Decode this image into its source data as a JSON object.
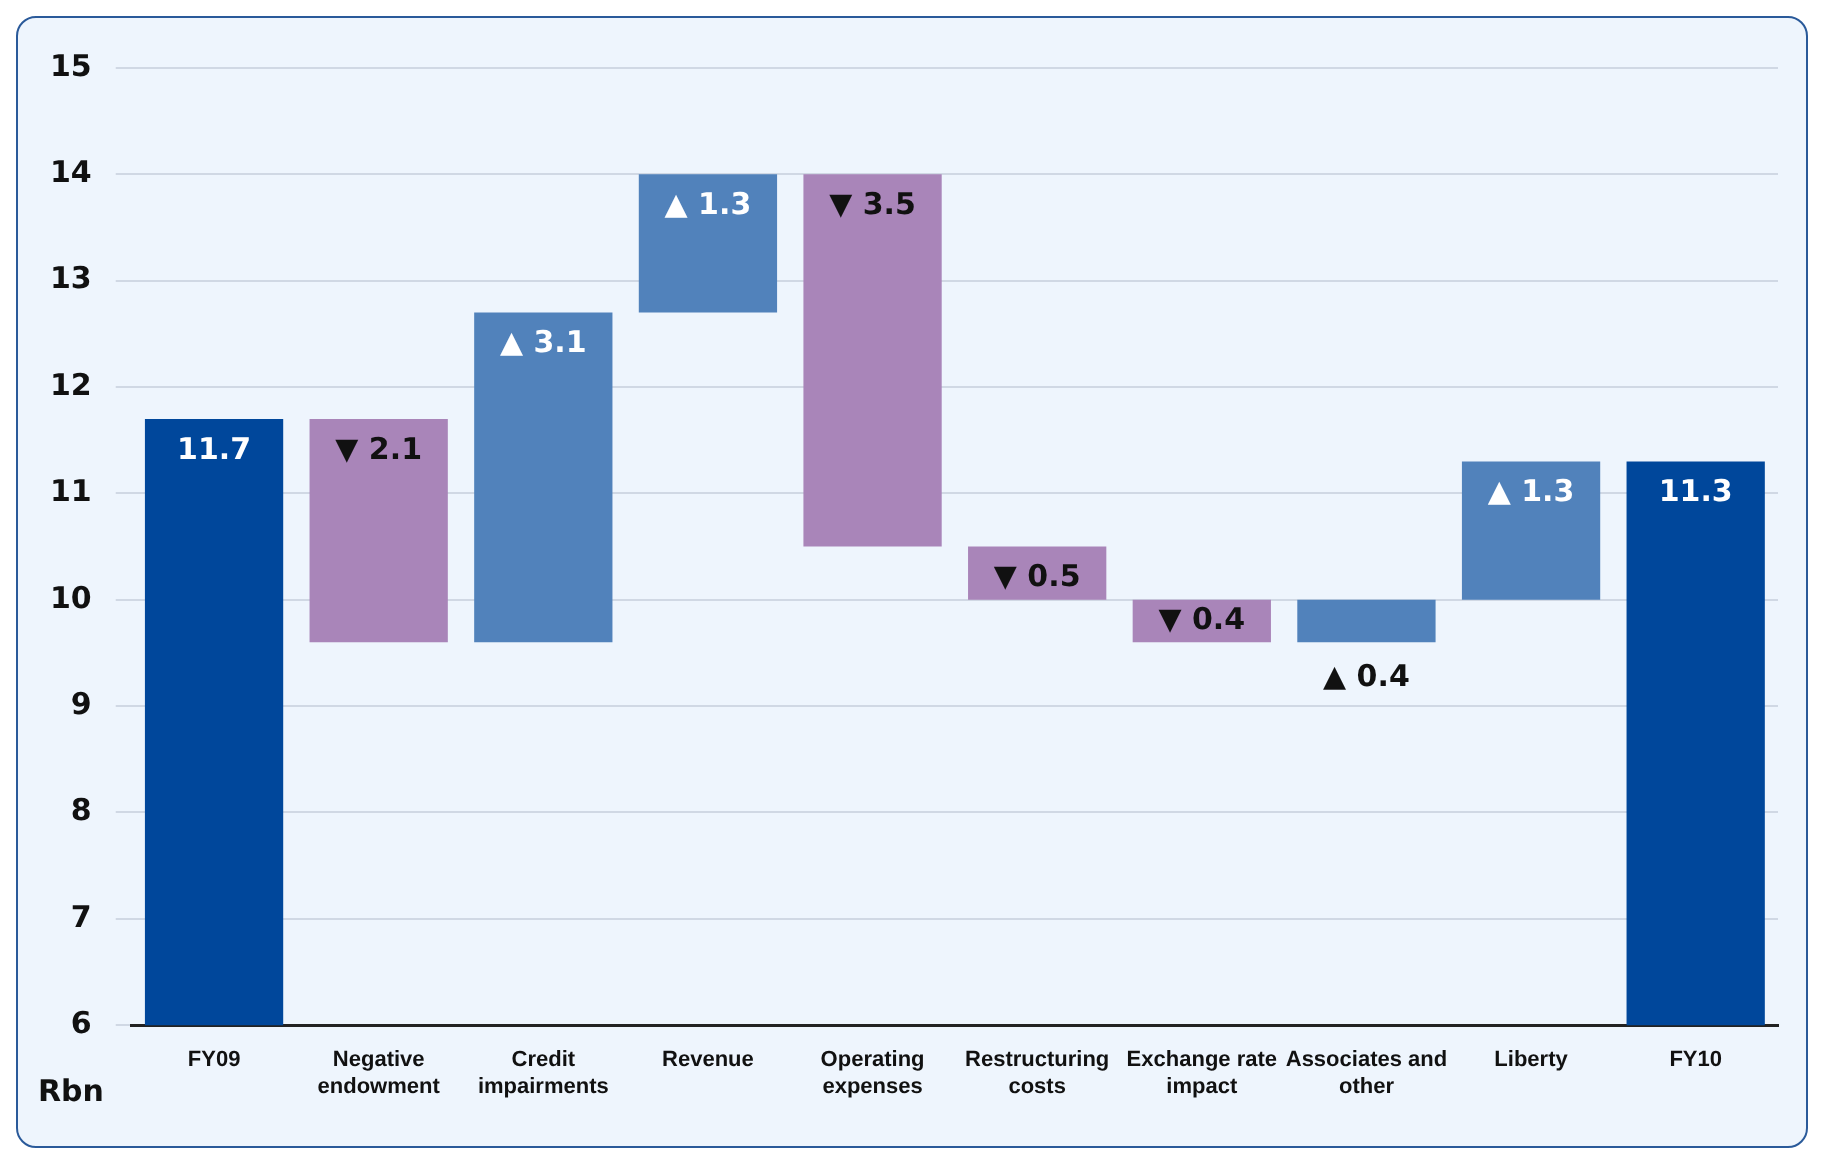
{
  "chart_data": {
    "type": "bar",
    "ylabel": "Rbn",
    "categories": [
      "FY09",
      "Negative endowment",
      "Credit impairments",
      "Revenue",
      "Operating expenses",
      "Restructuring costs",
      "Exchange rate impact",
      "Associates and other",
      "Liberty",
      "FY10"
    ],
    "values": [
      11.7,
      -2.1,
      3.1,
      1.3,
      -3.5,
      -0.5,
      -0.4,
      0.4,
      1.3,
      11.3
    ],
    "base": [
      null,
      11.7,
      9.6,
      12.7,
      14.0,
      10.5,
      10.0,
      9.6,
      10.0,
      null
    ],
    "colors": [
      "#00479b",
      "#a985b9",
      "#5182bb",
      "#5182bb",
      "#a985b9",
      "#a985b9",
      "#a985b9",
      "#5182bb",
      "#5182bb",
      "#00479b"
    ],
    "value_labels": [
      "11.7",
      "▼ 2.1",
      "▲ 3.1",
      "▲ 1.3",
      "▼ 3.5",
      "▼ 0.5",
      "▼ 0.4",
      "▲ 0.4",
      "▲ 1.3",
      "11.3"
    ],
    "ylim": [
      6,
      15
    ],
    "yticks": [
      6,
      7,
      8,
      9,
      10,
      11,
      12,
      13,
      14,
      15
    ],
    "grid": "y",
    "legend": false
  }
}
